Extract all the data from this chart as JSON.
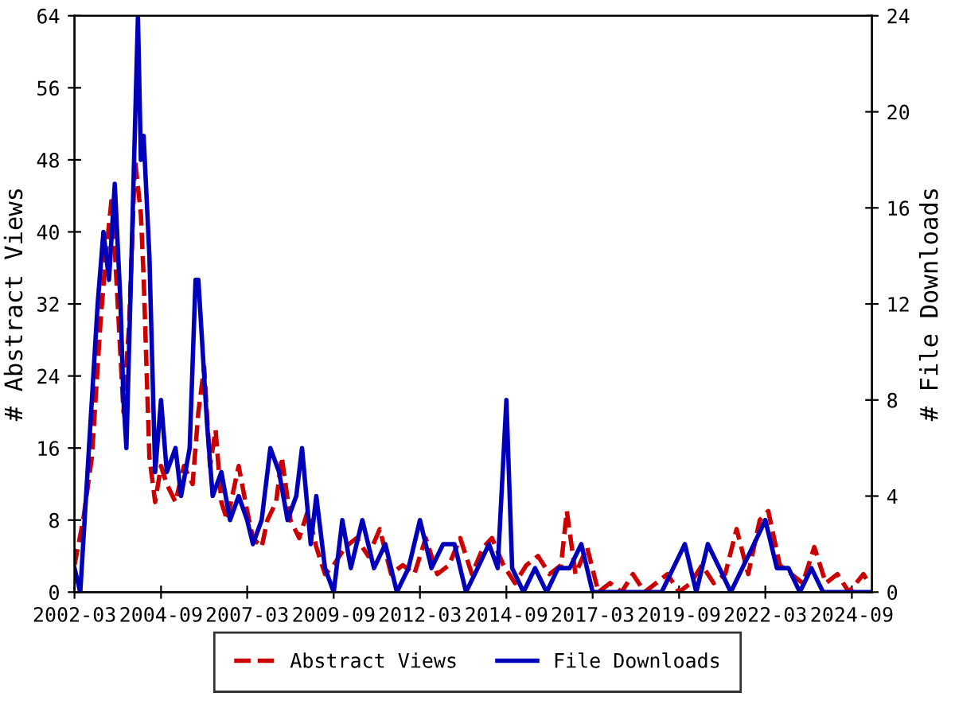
{
  "chart_data": {
    "type": "line",
    "xlabel": null,
    "ylabel": "# Abstract Views",
    "y2label": "# File Downloads",
    "xlim": [
      "2002-03",
      "2025-04"
    ],
    "xticks": [
      "2002-03",
      "2004-09",
      "2007-03",
      "2009-09",
      "2012-03",
      "2014-09",
      "2017-03",
      "2019-09",
      "2022-03",
      "2024-09"
    ],
    "ylim": [
      0,
      64
    ],
    "yticks": [
      0,
      8,
      16,
      24,
      32,
      40,
      48,
      56,
      64
    ],
    "y2lim": [
      0,
      24
    ],
    "y2ticks": [
      0,
      4,
      8,
      12,
      16,
      20,
      24
    ],
    "grid": false,
    "legend": "bottom",
    "marker": "none",
    "series": [
      {
        "name": "Abstract Views",
        "color": "#cc0000",
        "line_style": "dashed",
        "x": [
          "2002-03",
          "2002-06",
          "2002-09",
          "2002-12",
          "2003-02",
          "2003-04",
          "2003-06",
          "2003-08",
          "2003-10",
          "2003-12",
          "2004-02",
          "2004-03",
          "2004-05",
          "2004-07",
          "2004-09",
          "2004-11",
          "2005-02",
          "2005-05",
          "2005-08",
          "2005-10",
          "2005-12",
          "2006-02",
          "2006-04",
          "2006-06",
          "2006-08",
          "2006-10",
          "2006-12",
          "2007-03",
          "2007-05",
          "2007-08",
          "2007-10",
          "2008-01",
          "2008-03",
          "2008-06",
          "2008-09",
          "2008-12",
          "2009-03",
          "2009-06",
          "2009-09",
          "2010-01",
          "2010-05",
          "2010-09",
          "2011-01",
          "2011-05",
          "2011-09",
          "2012-01",
          "2012-05",
          "2012-09",
          "2013-01",
          "2013-05",
          "2013-09",
          "2014-01",
          "2014-04",
          "2014-08",
          "2014-12",
          "2015-04",
          "2015-08",
          "2015-12",
          "2016-04",
          "2016-06",
          "2016-09",
          "2017-01",
          "2017-05",
          "2017-09",
          "2018-01",
          "2018-05",
          "2018-09",
          "2019-01",
          "2019-05",
          "2019-09",
          "2020-01",
          "2020-05",
          "2020-09",
          "2021-01",
          "2021-05",
          "2021-09",
          "2022-01",
          "2022-04",
          "2022-08",
          "2022-12",
          "2023-04",
          "2023-08",
          "2023-12",
          "2024-04",
          "2024-08",
          "2025-01",
          "2025-03"
        ],
        "values": [
          3,
          8,
          15,
          30,
          38,
          44,
          32,
          20,
          30,
          48,
          42,
          35,
          15,
          10,
          14,
          12,
          10,
          14,
          12,
          20,
          25,
          14,
          18,
          10,
          8,
          11,
          14,
          9,
          6,
          5,
          8,
          10,
          15,
          8,
          6,
          9,
          5,
          2,
          3,
          5,
          6,
          4,
          7,
          2,
          3,
          2,
          6,
          2,
          3,
          6,
          2,
          5,
          6,
          3,
          1,
          3,
          4,
          2,
          3,
          9,
          2,
          5,
          0,
          1,
          0,
          2,
          0,
          1,
          2,
          0,
          1,
          3,
          1,
          2,
          7,
          2,
          8,
          9,
          3,
          2,
          1,
          5,
          1,
          2,
          0,
          2,
          1
        ]
      },
      {
        "name": "File Downloads",
        "color": "#0000bb",
        "line_style": "solid",
        "axis": "y2",
        "x": [
          "2002-03",
          "2002-05",
          "2002-08",
          "2002-11",
          "2003-01",
          "2003-03",
          "2003-05",
          "2003-07",
          "2003-08",
          "2003-09",
          "2003-11",
          "2004-01",
          "2004-02",
          "2004-03",
          "2004-05",
          "2004-07",
          "2004-09",
          "2004-11",
          "2005-02",
          "2005-04",
          "2005-07",
          "2005-09",
          "2005-10",
          "2006-01",
          "2006-03",
          "2006-06",
          "2006-09",
          "2006-12",
          "2007-03",
          "2007-05",
          "2007-08",
          "2007-11",
          "2008-02",
          "2008-05",
          "2008-08",
          "2008-10",
          "2009-01",
          "2009-03",
          "2009-06",
          "2009-09",
          "2009-12",
          "2010-03",
          "2010-07",
          "2010-11",
          "2011-03",
          "2011-07",
          "2011-11",
          "2012-03",
          "2012-07",
          "2012-11",
          "2013-03",
          "2013-07",
          "2013-11",
          "2014-03",
          "2014-06",
          "2014-09",
          "2014-11",
          "2015-03",
          "2015-07",
          "2015-11",
          "2016-03",
          "2016-07",
          "2016-11",
          "2017-03",
          "2017-07",
          "2017-11",
          "2018-03",
          "2018-07",
          "2018-11",
          "2019-03",
          "2019-07",
          "2019-11",
          "2020-03",
          "2020-07",
          "2020-11",
          "2021-03",
          "2021-07",
          "2021-11",
          "2022-03",
          "2022-07",
          "2022-11",
          "2023-03",
          "2023-07",
          "2023-11",
          "2024-03",
          "2024-07",
          "2024-11",
          "2025-03"
        ],
        "values": [
          1,
          0,
          6,
          12,
          15,
          13,
          17,
          12,
          8,
          6,
          15,
          24,
          18,
          19,
          14,
          5,
          8,
          5,
          6,
          4,
          6,
          13,
          13,
          7,
          4,
          5,
          3,
          4,
          3,
          2,
          3,
          6,
          5,
          3,
          4,
          6,
          2,
          4,
          1,
          0,
          3,
          1,
          3,
          1,
          2,
          0,
          1,
          3,
          1,
          2,
          2,
          0,
          1,
          2,
          1,
          8,
          1,
          0,
          1,
          0,
          1,
          1,
          2,
          0,
          0,
          0,
          0,
          0,
          0,
          0,
          1,
          2,
          0,
          2,
          1,
          0,
          1,
          2,
          3,
          1,
          1,
          0,
          1,
          0,
          0,
          0,
          0,
          0
        ]
      }
    ]
  }
}
